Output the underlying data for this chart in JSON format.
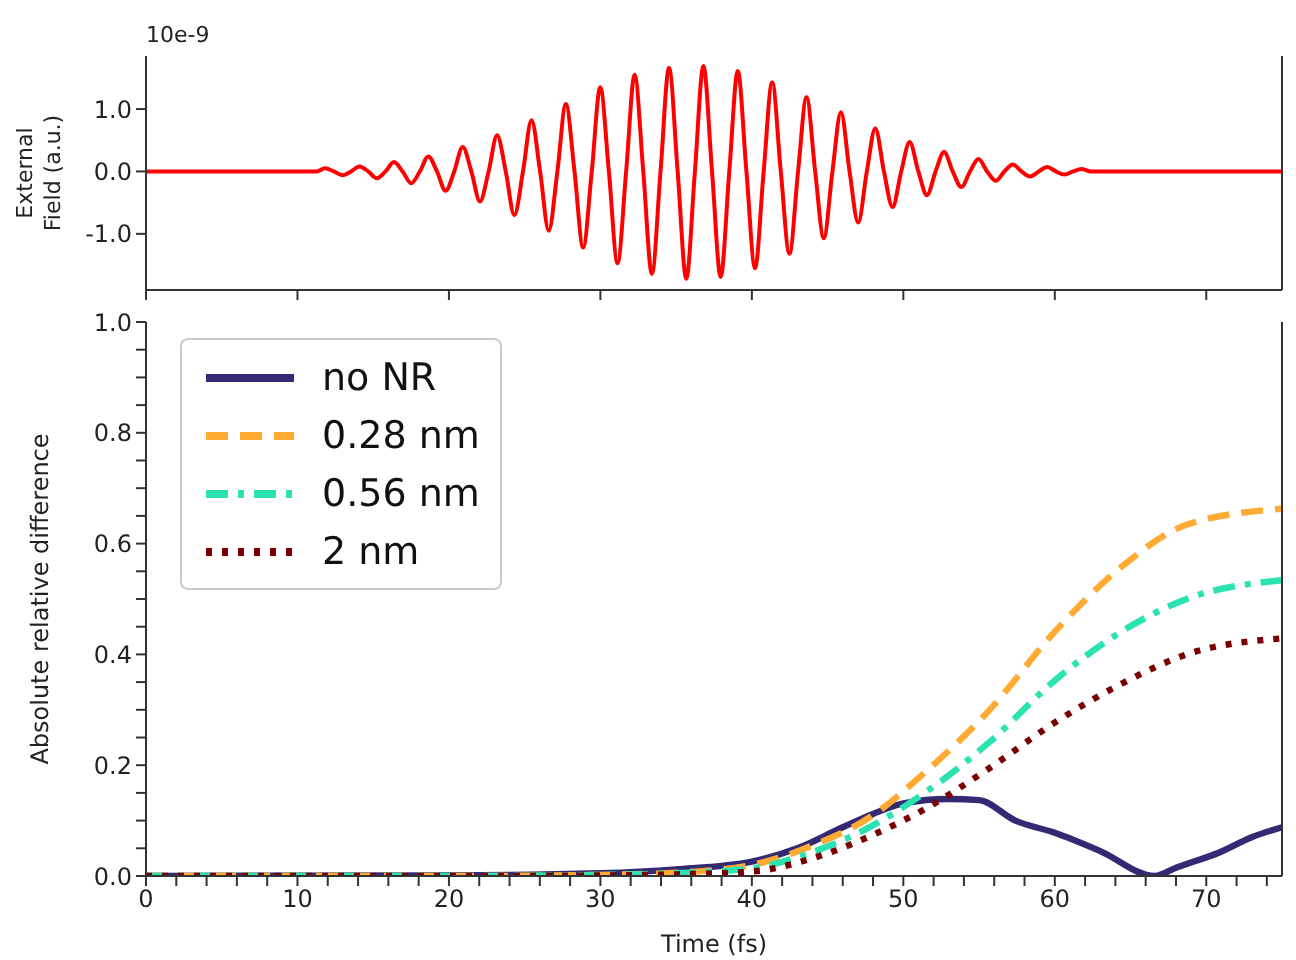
{
  "chart_data": [
    {
      "type": "line",
      "ylabel": "External Field (a.u.)",
      "annotations": [
        "10e-9"
      ],
      "xlim": [
        0,
        75
      ],
      "xticks": [
        {
          "value": 0,
          "label": null
        },
        {
          "value": 10,
          "label": null
        },
        {
          "value": 20,
          "label": null
        },
        {
          "value": 30,
          "label": null
        },
        {
          "value": 40,
          "label": null
        },
        {
          "value": 50,
          "label": null
        },
        {
          "value": 60,
          "label": null
        },
        {
          "value": 70,
          "label": null
        }
      ],
      "ylim": [
        -1.9,
        1.85
      ],
      "yticks": [
        {
          "value": -1,
          "label": "-1.0"
        },
        {
          "value": 0,
          "label": "0.0"
        },
        {
          "value": 1,
          "label": "1.0"
        }
      ],
      "tick_labels": "y",
      "line_style": "solid",
      "marker": "none",
      "series": [
        {
          "color": "#ff0000",
          "x": [
            0,
            11.26,
            11.83,
            12.4,
            12.97,
            13.54,
            14.1,
            14.67,
            15.24,
            15.81,
            16.37,
            16.94,
            17.51,
            18.08,
            18.64,
            19.21,
            19.78,
            20.35,
            20.91,
            21.48,
            22.05,
            22.62,
            23.18,
            23.75,
            24.32,
            24.89,
            25.45,
            26.02,
            26.59,
            27.16,
            27.72,
            28.29,
            28.86,
            29.43,
            29.99,
            30.56,
            31.13,
            31.7,
            32.26,
            32.83,
            33.4,
            33.97,
            34.53,
            35.1,
            35.67,
            36.24,
            36.8,
            37.37,
            37.94,
            38.51,
            39.07,
            39.64,
            40.21,
            40.78,
            41.34,
            41.91,
            42.48,
            43.05,
            43.61,
            44.18,
            44.75,
            45.32,
            45.88,
            46.45,
            47.02,
            47.59,
            48.15,
            48.72,
            49.29,
            49.86,
            50.42,
            50.99,
            51.56,
            52.13,
            52.69,
            53.26,
            53.83,
            54.4,
            54.96,
            55.53,
            56.1,
            56.67,
            57.23,
            57.8,
            58.37,
            58.94,
            59.5,
            60.07,
            60.64,
            61.21,
            61.77,
            62.34,
            75
          ],
          "values": [
            0,
            0,
            0.05,
            0,
            -0.06,
            0,
            0.08,
            0,
            -0.11,
            0,
            0.15,
            0,
            -0.19,
            0,
            0.24,
            0,
            -0.31,
            0,
            0.39,
            0,
            -0.48,
            0,
            0.58,
            0,
            -0.7,
            0,
            0.82,
            0,
            -0.95,
            0,
            1.08,
            0,
            -1.22,
            0,
            1.35,
            0,
            -1.47,
            0,
            1.55,
            0,
            -1.64,
            0,
            1.66,
            0,
            -1.72,
            0,
            1.69,
            0,
            -1.69,
            0,
            1.61,
            0,
            -1.55,
            0,
            1.43,
            0,
            -1.32,
            0,
            1.19,
            0,
            -1.07,
            0,
            0.95,
            0,
            -0.82,
            0,
            0.69,
            0,
            -0.57,
            0,
            0.47,
            0,
            -0.38,
            0,
            0.31,
            0,
            -0.25,
            0,
            0.2,
            0,
            -0.15,
            0,
            0.11,
            0,
            -0.08,
            0,
            0.07,
            0,
            -0.05,
            0,
            0.04,
            0,
            0
          ]
        }
      ]
    },
    {
      "type": "line",
      "xlabel": "Time (fs)",
      "ylabel": "Absolute relative difference",
      "xlim": [
        0,
        75
      ],
      "xticks": [
        0,
        10,
        20,
        30,
        40,
        50,
        60,
        70,
        {
          "value": 2,
          "label": null
        },
        {
          "value": 4,
          "label": null
        },
        {
          "value": 6,
          "label": null
        },
        {
          "value": 8,
          "label": null
        },
        {
          "value": 12,
          "label": null
        },
        {
          "value": 14,
          "label": null
        },
        {
          "value": 16,
          "label": null
        },
        {
          "value": 18,
          "label": null
        },
        {
          "value": 22,
          "label": null
        },
        {
          "value": 24,
          "label": null
        },
        {
          "value": 26,
          "label": null
        },
        {
          "value": 28,
          "label": null
        },
        {
          "value": 32,
          "label": null
        },
        {
          "value": 34,
          "label": null
        },
        {
          "value": 36,
          "label": null
        },
        {
          "value": 38,
          "label": null
        },
        {
          "value": 42,
          "label": null
        },
        {
          "value": 44,
          "label": null
        },
        {
          "value": 46,
          "label": null
        },
        {
          "value": 48,
          "label": null
        },
        {
          "value": 52,
          "label": null
        },
        {
          "value": 54,
          "label": null
        },
        {
          "value": 56,
          "label": null
        },
        {
          "value": 58,
          "label": null
        },
        {
          "value": 62,
          "label": null
        },
        {
          "value": 64,
          "label": null
        },
        {
          "value": 66,
          "label": null
        },
        {
          "value": 68,
          "label": null
        },
        {
          "value": 72,
          "label": null
        },
        {
          "value": 74,
          "label": null
        }
      ],
      "ylim": [
        0,
        1
      ],
      "yticks": [
        {
          "value": 0,
          "label": "0.0"
        },
        {
          "value": 0.2,
          "label": "0.2"
        },
        {
          "value": 0.4,
          "label": "0.4"
        },
        {
          "value": 0.6,
          "label": "0.6"
        },
        {
          "value": 0.8,
          "label": "0.8"
        },
        {
          "value": 1,
          "label": "1.0"
        },
        {
          "value": 0.05,
          "label": null
        },
        {
          "value": 0.1,
          "label": null
        },
        {
          "value": 0.15,
          "label": null
        },
        {
          "value": 0.25,
          "label": null
        },
        {
          "value": 0.3,
          "label": null
        },
        {
          "value": 0.35,
          "label": null
        },
        {
          "value": 0.45,
          "label": null
        },
        {
          "value": 0.5,
          "label": null
        },
        {
          "value": 0.55,
          "label": null
        },
        {
          "value": 0.65,
          "label": null
        },
        {
          "value": 0.7,
          "label": null
        },
        {
          "value": 0.75,
          "label": null
        },
        {
          "value": 0.85,
          "label": null
        },
        {
          "value": 0.9,
          "label": null
        },
        {
          "value": 0.95,
          "label": null
        }
      ],
      "legend": "top left",
      "marker": "none",
      "series": [
        {
          "name": "no NR",
          "color": "#332a73",
          "line_style": "solid",
          "x": [
            0,
            20,
            30,
            35,
            40,
            43,
            46,
            48,
            50,
            53,
            55,
            57.4,
            60,
            63,
            66.6,
            68,
            70.9,
            73,
            75
          ],
          "values": [
            0,
            0.001,
            0.005,
            0.012,
            0.026,
            0.05,
            0.088,
            0.112,
            0.131,
            0.139,
            0.137,
            0.1,
            0.078,
            0.045,
            0,
            0.015,
            0.043,
            0.07,
            0.088
          ]
        },
        {
          "name": "0.28 nm",
          "color": "#ffab33",
          "line_style": "dashed",
          "x": [
            0,
            20,
            30,
            35,
            40,
            44,
            47.9,
            51.3,
            55.7,
            60,
            64.4,
            68.7,
            75
          ],
          "values": [
            0,
            0,
            0.002,
            0.006,
            0.02,
            0.055,
            0.108,
            0.184,
            0.3,
            0.441,
            0.558,
            0.634,
            0.663
          ]
        },
        {
          "name": "0.56 nm",
          "color": "#2ae3b0",
          "line_style": "dashdot",
          "x": [
            0,
            20,
            30,
            35,
            40,
            44,
            47.9,
            51.3,
            55.7,
            60,
            64.4,
            68.7,
            75
          ],
          "values": [
            0,
            0,
            0.002,
            0.005,
            0.014,
            0.043,
            0.09,
            0.148,
            0.242,
            0.353,
            0.441,
            0.5,
            0.534
          ]
        },
        {
          "name": "2 nm",
          "color": "#7a0000",
          "line_style": "dotted",
          "x": [
            0,
            20,
            30,
            35,
            40,
            44,
            47.9,
            51.3,
            55.7,
            60,
            64.4,
            68.7,
            75
          ],
          "values": [
            0,
            0,
            0.001,
            0.003,
            0.008,
            0.032,
            0.073,
            0.119,
            0.195,
            0.277,
            0.347,
            0.4,
            0.429
          ]
        }
      ]
    }
  ]
}
